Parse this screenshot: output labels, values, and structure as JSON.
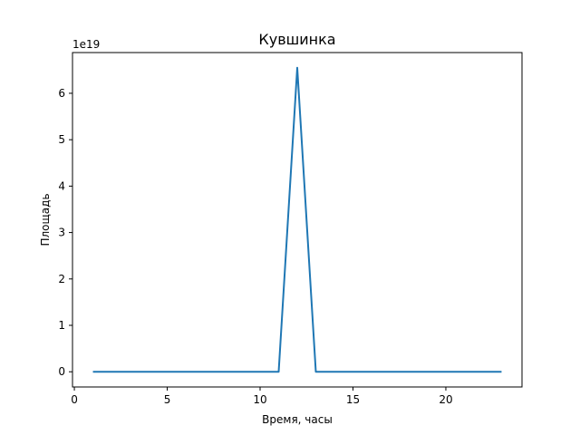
{
  "chart_data": {
    "type": "line",
    "title": "Кувшинка",
    "xlabel": "Время, часы",
    "ylabel": "Площадь",
    "y_multiplier_label": "1e19",
    "xlim": [
      -0.1,
      24.1
    ],
    "ylim": [
      -0.3275,
      6.8775
    ],
    "x_ticks": [
      0,
      5,
      10,
      15,
      20
    ],
    "x_tick_labels": [
      "0",
      "5",
      "10",
      "15",
      "20"
    ],
    "y_ticks": [
      0,
      1,
      2,
      3,
      4,
      5,
      6
    ],
    "y_tick_labels": [
      "0",
      "1",
      "2",
      "3",
      "4",
      "5",
      "6"
    ],
    "grid": false,
    "series": [
      {
        "color": "#1f77b4",
        "x": [
          1,
          2,
          3,
          4,
          5,
          6,
          7,
          8,
          9,
          10,
          11,
          12,
          13,
          14,
          15,
          16,
          17,
          18,
          19,
          20,
          21,
          22,
          23
        ],
        "y": [
          0,
          0,
          0,
          0,
          0,
          0,
          0,
          0,
          0,
          0,
          0,
          6.55,
          0,
          0,
          0,
          0,
          0,
          0,
          0,
          0,
          0,
          0,
          0
        ]
      }
    ]
  }
}
